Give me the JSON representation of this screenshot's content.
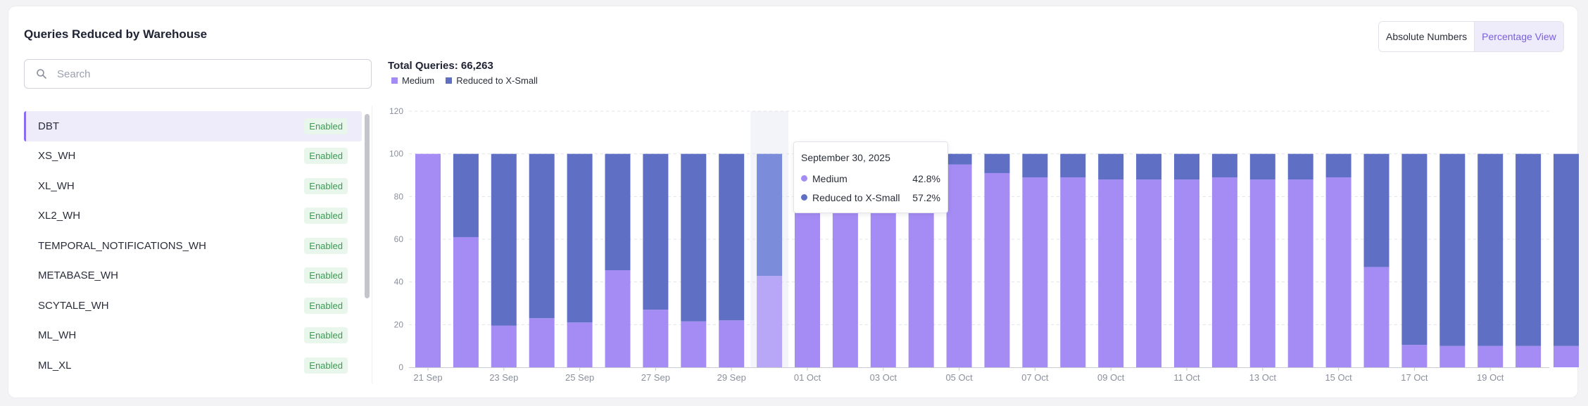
{
  "panel": {
    "title": "Queries Reduced by Warehouse"
  },
  "view_toggle": {
    "absolute_label": "Absolute Numbers",
    "percentage_label": "Percentage View",
    "selected": "Percentage View"
  },
  "search": {
    "placeholder": "Search",
    "value": ""
  },
  "warehouses": [
    {
      "name": "DBT",
      "status": "Enabled",
      "selected": true
    },
    {
      "name": "XS_WH",
      "status": "Enabled"
    },
    {
      "name": "XL_WH",
      "status": "Enabled"
    },
    {
      "name": "XL2_WH",
      "status": "Enabled"
    },
    {
      "name": "TEMPORAL_NOTIFICATIONS_WH",
      "status": "Enabled"
    },
    {
      "name": "METABASE_WH",
      "status": "Enabled"
    },
    {
      "name": "SCYTALE_WH",
      "status": "Enabled"
    },
    {
      "name": "ML_WH",
      "status": "Enabled"
    },
    {
      "name": "ML_XL",
      "status": "Enabled"
    }
  ],
  "summary": {
    "total_label": "Total Queries: 66,263"
  },
  "legend": {
    "medium": "Medium",
    "reduced": "Reduced to X-Small"
  },
  "colors": {
    "medium": "#a48cf4",
    "reduced": "#5e6fc4",
    "medium_hover": "#b8a7f6",
    "reduced_hover": "#7b8cdb",
    "accent": "#7a5ee0",
    "enabled_text": "#3c9a53",
    "enabled_bg": "#e9f6ec"
  },
  "tooltip": {
    "date": "September 30, 2025",
    "medium_label": "Medium",
    "medium_value": "42.8%",
    "reduced_label": "Reduced to X-Small",
    "reduced_value": "57.2%"
  },
  "chart_data": {
    "type": "bar",
    "stacked": true,
    "categories": [
      "21 Sep",
      "22 Sep",
      "23 Sep",
      "24 Sep",
      "25 Sep",
      "26 Sep",
      "27 Sep",
      "28 Sep",
      "29 Sep",
      "30 Sep",
      "01 Oct",
      "02 Oct",
      "03 Oct",
      "04 Oct",
      "05 Oct",
      "06 Oct",
      "07 Oct",
      "08 Oct",
      "09 Oct",
      "10 Oct",
      "11 Oct",
      "12 Oct",
      "13 Oct",
      "14 Oct",
      "15 Oct",
      "16 Oct",
      "17 Oct",
      "18 Oct",
      "19 Oct",
      "20 Oct",
      "21 Oct"
    ],
    "x_tick_labels": [
      "21 Sep",
      "23 Sep",
      "25 Sep",
      "27 Sep",
      "29 Sep",
      "01 Oct",
      "03 Oct",
      "05 Oct",
      "07 Oct",
      "09 Oct",
      "11 Oct",
      "13 Oct",
      "15 Oct",
      "17 Oct",
      "19 Oct"
    ],
    "series": [
      {
        "name": "Medium",
        "values": [
          100,
          61,
          19.5,
          23,
          21,
          45.5,
          27,
          21.5,
          22,
          42.8,
          100,
          100,
          100,
          100,
          95,
          91,
          89,
          89,
          88,
          88,
          88,
          89,
          88,
          88,
          89,
          47,
          10.5,
          10,
          10,
          10,
          10
        ]
      },
      {
        "name": "Reduced to X-Small",
        "values": [
          0,
          39,
          80.5,
          77,
          79,
          54.5,
          73,
          78.5,
          78,
          57.2,
          0,
          0,
          0,
          0,
          5,
          9,
          11,
          11,
          12,
          12,
          12,
          11,
          12,
          12,
          11,
          53,
          89.5,
          90,
          90,
          90,
          90
        ]
      }
    ],
    "ylim": [
      0,
      120
    ],
    "yticks": [
      0,
      20,
      40,
      60,
      80,
      100,
      120
    ],
    "grid": true,
    "legend_position": "top-left",
    "highlighted_category": "30 Sep"
  }
}
